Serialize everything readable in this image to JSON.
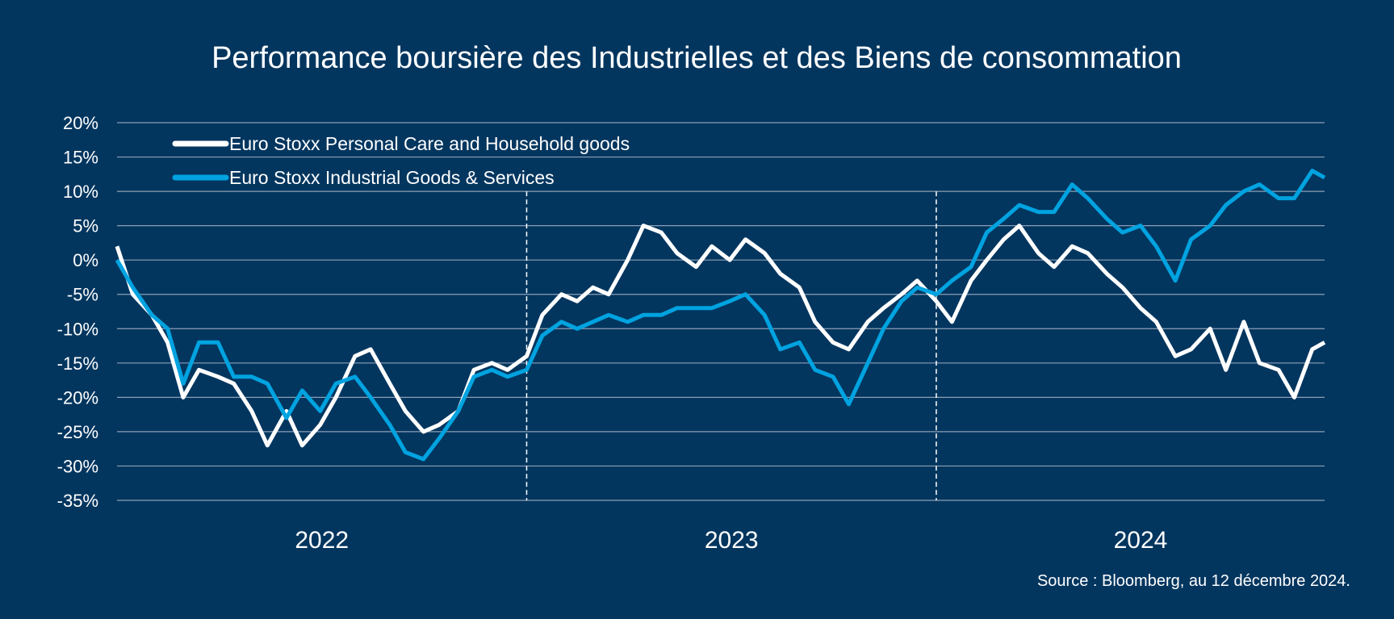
{
  "chart_data": {
    "type": "line",
    "title": "Performance boursière des Industrielles et des Biens de consommation",
    "source": "Source : Bloomberg, au 12 décembre 2024.",
    "xlabel": "",
    "ylabel": "",
    "ylim": [
      -35,
      20
    ],
    "y_ticks": [
      20,
      15,
      10,
      5,
      0,
      -5,
      -10,
      -15,
      -20,
      -25,
      -30,
      -35
    ],
    "y_tick_labels": [
      "20%",
      "15%",
      "10%",
      "5%",
      "0%",
      "-5%",
      "-10%",
      "-15%",
      "-20%",
      "-25%",
      "-30%",
      "-35%"
    ],
    "x_categories": [
      "2022",
      "2023",
      "2024"
    ],
    "year_separators": [
      "2023-01-01",
      "2024-01-01"
    ],
    "grid": "horizontal",
    "legend_position": "top-left",
    "background_color": "#03365f",
    "x": [
      "2022-01-01",
      "2022-01-15",
      "2022-02-01",
      "2022-02-15",
      "2022-03-01",
      "2022-03-15",
      "2022-04-01",
      "2022-04-15",
      "2022-05-01",
      "2022-05-15",
      "2022-06-01",
      "2022-06-15",
      "2022-07-01",
      "2022-07-15",
      "2022-08-01",
      "2022-08-15",
      "2022-09-01",
      "2022-09-15",
      "2022-10-01",
      "2022-10-15",
      "2022-11-01",
      "2022-11-15",
      "2022-12-01",
      "2022-12-15",
      "2023-01-01",
      "2023-01-15",
      "2023-02-01",
      "2023-02-15",
      "2023-03-01",
      "2023-03-15",
      "2023-04-01",
      "2023-04-15",
      "2023-05-01",
      "2023-05-15",
      "2023-06-01",
      "2023-06-15",
      "2023-07-01",
      "2023-07-15",
      "2023-08-01",
      "2023-08-15",
      "2023-09-01",
      "2023-09-15",
      "2023-10-01",
      "2023-10-15",
      "2023-11-01",
      "2023-11-15",
      "2023-12-01",
      "2023-12-15",
      "2024-01-01",
      "2024-01-15",
      "2024-02-01",
      "2024-02-15",
      "2024-03-01",
      "2024-03-15",
      "2024-04-01",
      "2024-04-15",
      "2024-05-01",
      "2024-05-15",
      "2024-06-01",
      "2024-06-15",
      "2024-07-01",
      "2024-07-15",
      "2024-08-01",
      "2024-08-15",
      "2024-09-01",
      "2024-09-15",
      "2024-10-01",
      "2024-10-15",
      "2024-11-01",
      "2024-11-15",
      "2024-12-01",
      "2024-12-12"
    ],
    "series": [
      {
        "name": "Euro Stoxx Personal Care and Household goods",
        "color": "#ffffff",
        "values": [
          2,
          -5,
          -8,
          -12,
          -20,
          -16,
          -17,
          -18,
          -22,
          -27,
          -22,
          -27,
          -24,
          -20,
          -14,
          -13,
          -18,
          -22,
          -25,
          -24,
          -22,
          -16,
          -15,
          -16,
          -14,
          -8,
          -5,
          -6,
          -4,
          -5,
          0,
          5,
          4,
          1,
          -1,
          2,
          0,
          3,
          1,
          -2,
          -4,
          -9,
          -12,
          -13,
          -9,
          -7,
          -5,
          -3,
          -6,
          -9,
          -3,
          0,
          3,
          5,
          1,
          -1,
          2,
          1,
          -2,
          -4,
          -7,
          -9,
          -14,
          -13,
          -10,
          -16,
          -9,
          -15,
          -16,
          -20,
          -13,
          -12
        ]
      },
      {
        "name": "Euro Stoxx Industrial Goods & Services",
        "color": "#00a3e0",
        "values": [
          0,
          -4,
          -8,
          -10,
          -18,
          -12,
          -12,
          -17,
          -17,
          -18,
          -23,
          -19,
          -22,
          -18,
          -17,
          -20,
          -24,
          -28,
          -29,
          -26,
          -22,
          -17,
          -16,
          -17,
          -16,
          -11,
          -9,
          -10,
          -9,
          -8,
          -9,
          -8,
          -8,
          -7,
          -7,
          -7,
          -6,
          -5,
          -8,
          -13,
          -12,
          -16,
          -17,
          -21,
          -15,
          -10,
          -6,
          -4,
          -5,
          -3,
          -1,
          4,
          6,
          8,
          7,
          7,
          11,
          9,
          6,
          4,
          5,
          2,
          -3,
          3,
          5,
          8,
          10,
          11,
          9,
          9,
          13,
          12
        ]
      }
    ]
  }
}
